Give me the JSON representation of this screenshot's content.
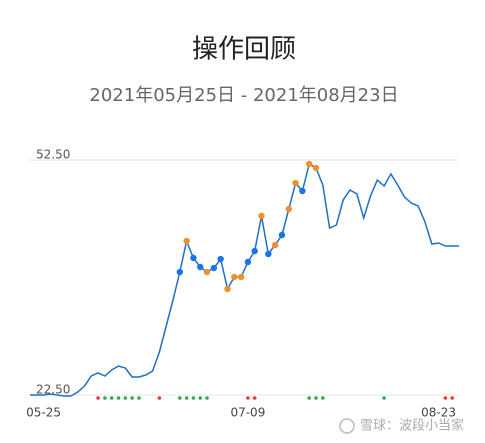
{
  "chart_data": {
    "type": "line",
    "title": "操作回顾",
    "subtitle": "2021年05月25日 - 2021年08月23日",
    "watermark": "雪球：波段小当家",
    "categories": [
      null,
      null,
      "05-25",
      null,
      null,
      null,
      null,
      null,
      null,
      null,
      null,
      null,
      null,
      null,
      null,
      null,
      null,
      null,
      null,
      null,
      null,
      null,
      null,
      null,
      null,
      null,
      null,
      null,
      null,
      null,
      null,
      null,
      "07-09",
      null,
      null,
      null,
      null,
      null,
      null,
      null,
      null,
      null,
      null,
      null,
      null,
      null,
      null,
      null,
      null,
      null,
      null,
      null,
      null,
      null,
      null,
      null,
      null,
      null,
      null,
      null,
      "08-23",
      null,
      null,
      null
    ],
    "series": [
      {
        "color": "#1f6fc4",
        "values": [
          22.5,
          22.5,
          22.5,
          22.63,
          22.5,
          22.37,
          22.37,
          22.88,
          23.65,
          24.93,
          25.31,
          24.93,
          25.69,
          26.2,
          25.95,
          24.8,
          24.8,
          25.05,
          25.56,
          27.99,
          31.31,
          34.63,
          38.2,
          42.16,
          39.99,
          38.84,
          38.2,
          38.71,
          39.86,
          36.03,
          37.56,
          37.56,
          39.48,
          40.88,
          45.35,
          40.5,
          41.65,
          42.93,
          46.24,
          49.56,
          48.54,
          51.99,
          51.48,
          49.31,
          43.82,
          44.2,
          47.39,
          48.67,
          48.16,
          45.1,
          47.9,
          49.94,
          49.18,
          50.71,
          49.31,
          47.78,
          47.01,
          46.63,
          44.58,
          41.78,
          41.9,
          41.52,
          41.52,
          41.52
        ]
      }
    ],
    "point_colors": [
      null,
      null,
      null,
      null,
      null,
      null,
      null,
      null,
      null,
      null,
      null,
      null,
      null,
      null,
      null,
      null,
      null,
      null,
      null,
      null,
      null,
      null,
      "#1a73e8",
      "#f0902a",
      "#1a73e8",
      "#1a73e8",
      "#f0902a",
      "#1a73e8",
      "#1a73e8",
      "#f0902a",
      "#f0902a",
      "#f0902a",
      "#1a73e8",
      "#1a73e8",
      "#f0902a",
      "#1a73e8",
      "#f0902a",
      "#1a73e8",
      "#f0902a",
      "#f0902a",
      "#1a73e8",
      "#f0902a",
      "#f0902a",
      null,
      null,
      null,
      null,
      null,
      null,
      null,
      null,
      null,
      null,
      null,
      null,
      null,
      null,
      null,
      null,
      null,
      null,
      null,
      null,
      null
    ],
    "signal_colors": [
      null,
      null,
      null,
      null,
      null,
      null,
      null,
      null,
      null,
      null,
      "#e53935",
      "#34a853",
      "#34a853",
      "#34a853",
      "#34a853",
      "#34a853",
      "#34a853",
      null,
      null,
      "#e53935",
      null,
      null,
      "#34a853",
      "#34a853",
      "#34a853",
      "#34a853",
      "#34a853",
      null,
      null,
      null,
      null,
      null,
      "#e53935",
      "#e53935",
      null,
      null,
      null,
      null,
      null,
      null,
      null,
      "#34a853",
      "#34a853",
      "#34a853",
      null,
      null,
      null,
      null,
      null,
      null,
      null,
      null,
      "#34a853",
      null,
      null,
      null,
      null,
      null,
      null,
      null,
      null,
      "#e53935",
      "#e53935",
      null
    ],
    "ylim": [
      22.5,
      52.5
    ],
    "yticks": [
      {
        "value": 22.5,
        "label": "22.50"
      },
      {
        "value": 52.5,
        "label": "52.50"
      }
    ],
    "grid": true
  }
}
